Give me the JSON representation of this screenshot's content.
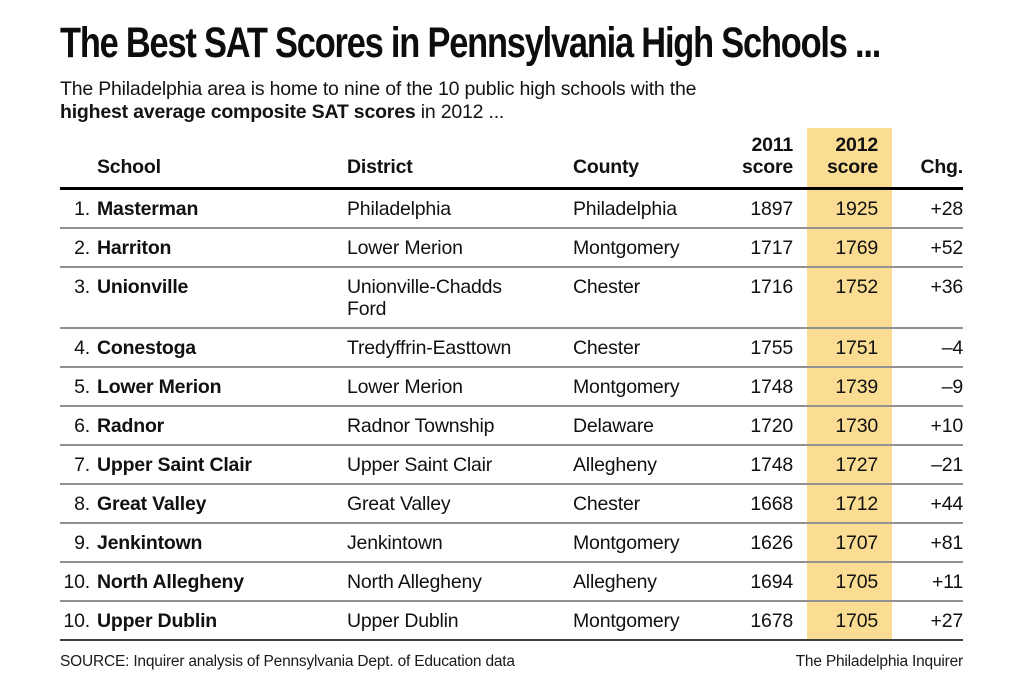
{
  "chart_data": {
    "type": "table",
    "title": "The Best SAT Scores in Pennsylvania High Schools ...",
    "subtitle_line1": "The Philadelphia area is home to nine of the 10 public high schools with the",
    "subtitle_bold": "highest average composite SAT scores",
    "subtitle_tail": " in 2012 ...",
    "columns": {
      "school": "School",
      "district": "District",
      "county": "County",
      "score2011_line1": "2011",
      "score2011_line2": "score",
      "score2012_line1": "2012",
      "score2012_line2": "score",
      "change": "Chg."
    },
    "rows": [
      {
        "rank": "1.",
        "school": "Masterman",
        "district": "Philadelphia",
        "county": "Philadelphia",
        "score2011": "1897",
        "score2012": "1925",
        "change": "+28"
      },
      {
        "rank": "2.",
        "school": "Harriton",
        "district": "Lower Merion",
        "county": "Montgomery",
        "score2011": "1717",
        "score2012": "1769",
        "change": "+52"
      },
      {
        "rank": "3.",
        "school": "Unionville",
        "district": "Unionville-Chadds\nFord",
        "county": "Chester",
        "score2011": "1716",
        "score2012": "1752",
        "change": "+36"
      },
      {
        "rank": "4.",
        "school": "Conestoga",
        "district": "Tredyffrin-Easttown",
        "county": "Chester",
        "score2011": "1755",
        "score2012": "1751",
        "change": "–4"
      },
      {
        "rank": "5.",
        "school": "Lower Merion",
        "district": "Lower Merion",
        "county": "Montgomery",
        "score2011": "1748",
        "score2012": "1739",
        "change": "–9"
      },
      {
        "rank": "6.",
        "school": "Radnor",
        "district": "Radnor Township",
        "county": "Delaware",
        "score2011": "1720",
        "score2012": "1730",
        "change": "+10"
      },
      {
        "rank": "7.",
        "school": "Upper Saint Clair",
        "district": "Upper Saint Clair",
        "county": "Allegheny",
        "score2011": "1748",
        "score2012": "1727",
        "change": "–21"
      },
      {
        "rank": "8.",
        "school": "Great Valley",
        "district": "Great Valley",
        "county": "Chester",
        "score2011": "1668",
        "score2012": "1712",
        "change": "+44"
      },
      {
        "rank": "9.",
        "school": "Jenkintown",
        "district": "Jenkintown",
        "county": "Montgomery",
        "score2011": "1626",
        "score2012": "1707",
        "change": "+81"
      },
      {
        "rank": "10.",
        "school": "North Allegheny",
        "district": "North Allegheny",
        "county": "Allegheny",
        "score2011": "1694",
        "score2012": "1705",
        "change": "+11"
      },
      {
        "rank": "10.",
        "school": "Upper Dublin",
        "district": "Upper Dublin",
        "county": "Montgomery",
        "score2011": "1678",
        "score2012": "1705",
        "change": "+27"
      }
    ],
    "source": "SOURCE: Inquirer analysis of Pennsylvania Dept. of Education data",
    "credit": "The Philadelphia Inquirer"
  },
  "colors": {
    "highlight_2012_column": "#FADD92",
    "text": "#111111",
    "row_rule": "#919191",
    "header_rule": "#000000"
  }
}
